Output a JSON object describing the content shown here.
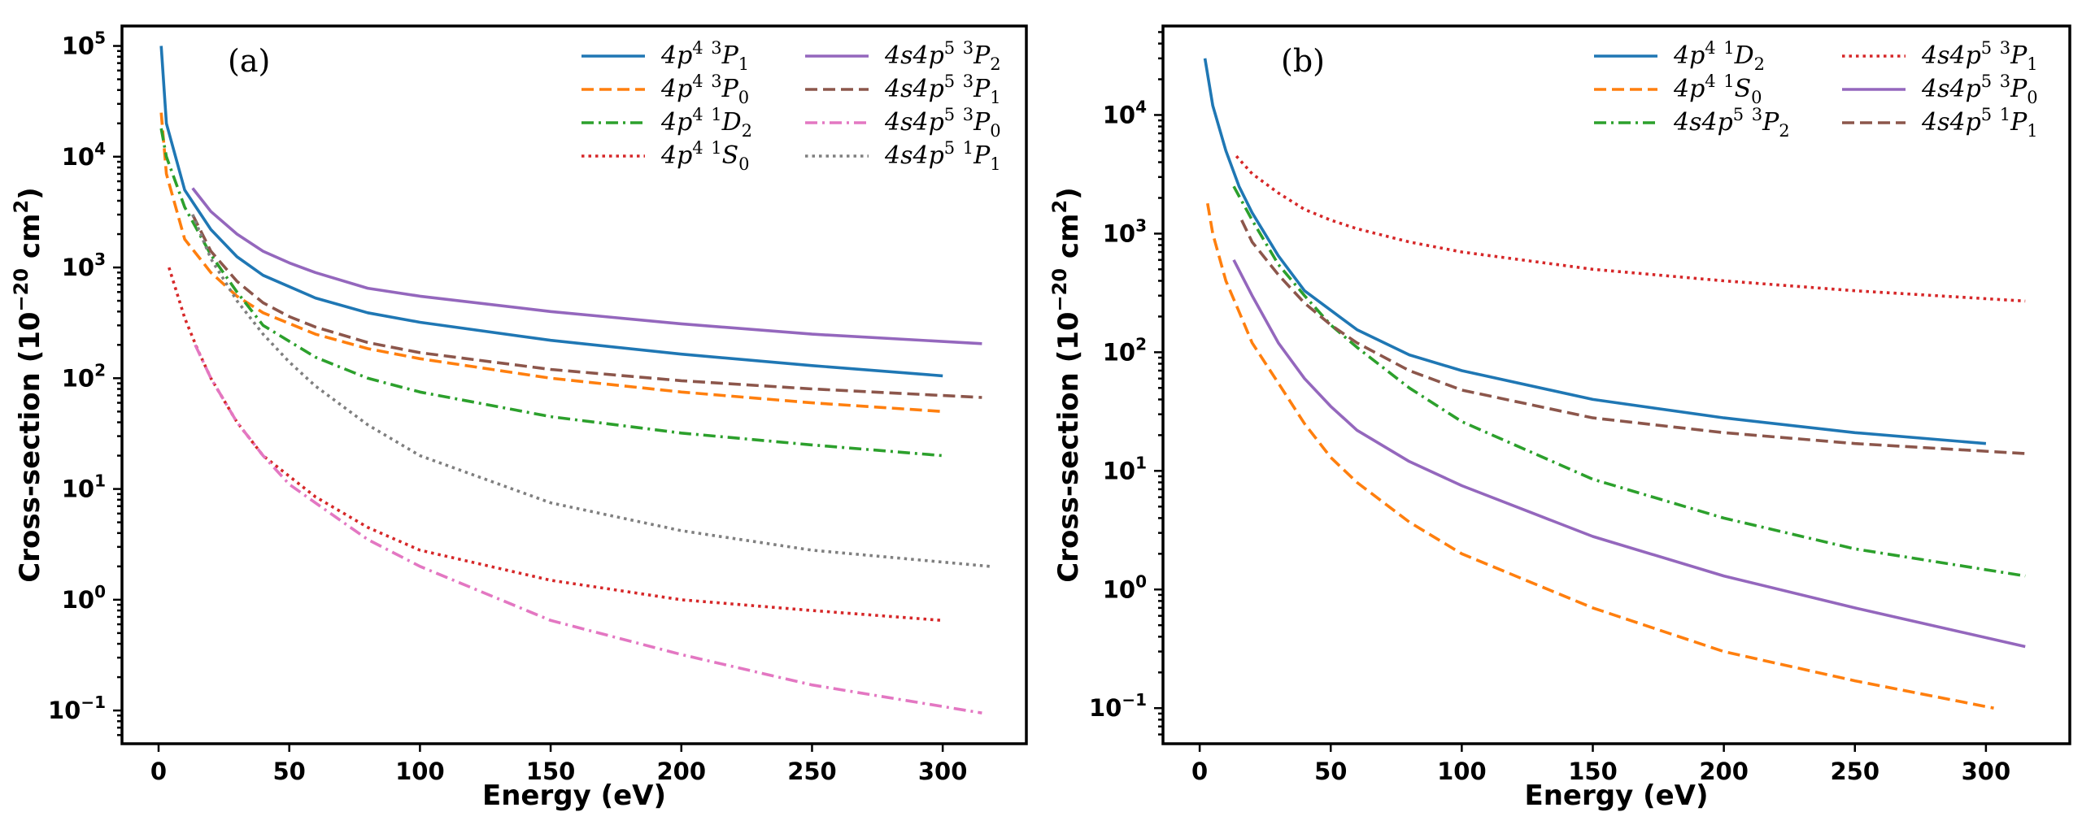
{
  "chart_data": [
    {
      "type": "line",
      "panel_label": "(a)",
      "xlabel": "Energy (eV)",
      "ylabel": "Cross-section (10",
      "ylabel_exp": "−20",
      "ylabel_unit": " cm",
      "ylabel_unit_exp": "2",
      "ylabel_close": ")",
      "xlim": [
        -14,
        332
      ],
      "ylim_log10": [
        -1.3,
        5.18
      ],
      "xticks": [
        0,
        50,
        100,
        150,
        200,
        250,
        300
      ],
      "yticks_log10": [
        -1,
        0,
        1,
        2,
        3,
        4,
        5
      ],
      "legend_position": "top-right",
      "series": [
        {
          "name": "4p4 3P1",
          "label": {
            "cfg": "4p",
            "cfg_exp": "4",
            "mult": "3",
            "term": "P",
            "j": "1"
          },
          "color": "#1f77b4",
          "style": "solid",
          "x": [
            1,
            3,
            10,
            20,
            30,
            40,
            60,
            80,
            100,
            150,
            200,
            250,
            300
          ],
          "y": [
            100000,
            20000,
            5000,
            2200,
            1250,
            850,
            530,
            390,
            320,
            220,
            165,
            130,
            105
          ]
        },
        {
          "name": "4p4 3P0",
          "label": {
            "cfg": "4p",
            "cfg_exp": "4",
            "mult": "3",
            "term": "P",
            "j": "0"
          },
          "color": "#ff7f0e",
          "style": "dashed",
          "x": [
            1,
            3,
            10,
            20,
            30,
            40,
            60,
            80,
            100,
            150,
            200,
            250,
            300
          ],
          "y": [
            25000,
            7000,
            1800,
            900,
            550,
            390,
            250,
            185,
            150,
            100,
            75,
            60,
            50
          ]
        },
        {
          "name": "4p4 1D2",
          "label": {
            "cfg": "4p",
            "cfg_exp": "4",
            "mult": "1",
            "term": "D",
            "j": "2"
          },
          "color": "#2ca02c",
          "style": "dashdot",
          "x": [
            1,
            3,
            10,
            20,
            30,
            40,
            60,
            80,
            100,
            150,
            200,
            250,
            300
          ],
          "y": [
            18000,
            10000,
            3500,
            1300,
            600,
            300,
            155,
            100,
            75,
            45,
            32,
            25,
            20
          ]
        },
        {
          "name": "4p4 1S0",
          "label": {
            "cfg": "4p",
            "cfg_exp": "4",
            "mult": "1",
            "term": "S",
            "j": "0"
          },
          "color": "#d62728",
          "style": "dotted",
          "x": [
            4,
            10,
            15,
            20,
            30,
            40,
            60,
            80,
            100,
            150,
            200,
            250,
            300
          ],
          "y": [
            1000,
            350,
            180,
            100,
            40,
            20,
            8.5,
            4.5,
            2.8,
            1.5,
            1.0,
            0.8,
            0.65
          ]
        },
        {
          "name": "4s4p5 3P2",
          "label": {
            "cfg": "4s4p",
            "cfg_exp": "5",
            "mult": "3",
            "term": "P",
            "j": "2"
          },
          "color": "#9467bd",
          "style": "solid",
          "x": [
            13,
            20,
            30,
            40,
            50,
            60,
            80,
            100,
            150,
            200,
            250,
            315
          ],
          "y": [
            5200,
            3200,
            2000,
            1400,
            1100,
            900,
            650,
            550,
            400,
            310,
            250,
            205
          ]
        },
        {
          "name": "4s4p5 3P1",
          "label": {
            "cfg": "4s4p",
            "cfg_exp": "5",
            "mult": "3",
            "term": "P",
            "j": "1"
          },
          "color": "#8c564b",
          "style": "dashed",
          "x": [
            13,
            20,
            30,
            40,
            50,
            60,
            80,
            100,
            150,
            200,
            250,
            315
          ],
          "y": [
            3000,
            1400,
            750,
            480,
            360,
            290,
            210,
            170,
            120,
            95,
            80,
            67
          ]
        },
        {
          "name": "4s4p5 3P0",
          "label": {
            "cfg": "4s4p",
            "cfg_exp": "5",
            "mult": "3",
            "term": "P",
            "j": "0"
          },
          "color": "#e377c2",
          "style": "dashdot",
          "x": [
            14,
            20,
            30,
            40,
            50,
            60,
            80,
            100,
            150,
            200,
            250,
            315
          ],
          "y": [
            200,
            100,
            40,
            20,
            11,
            7.5,
            3.5,
            2.0,
            0.65,
            0.32,
            0.17,
            0.095
          ]
        },
        {
          "name": "4s4p5 1P1",
          "label": {
            "cfg": "4s4p",
            "cfg_exp": "5",
            "mult": "1",
            "term": "P",
            "j": "1"
          },
          "color": "#7f7f7f",
          "style": "dotted",
          "x": [
            13,
            20,
            30,
            40,
            50,
            60,
            80,
            100,
            150,
            200,
            250,
            318
          ],
          "y": [
            3000,
            1200,
            500,
            250,
            140,
            85,
            38,
            20,
            7.5,
            4.2,
            2.8,
            2.0
          ]
        }
      ]
    },
    {
      "type": "line",
      "panel_label": "(b)",
      "xlabel": "Energy (eV)",
      "ylabel": "Cross-section (10",
      "ylabel_exp": "−20",
      "ylabel_unit": " cm",
      "ylabel_unit_exp": "2",
      "ylabel_close": ")",
      "xlim": [
        -14,
        332
      ],
      "ylim_log10": [
        -1.3,
        4.75
      ],
      "xticks": [
        0,
        50,
        100,
        150,
        200,
        250,
        300
      ],
      "yticks_log10": [
        -1,
        0,
        1,
        2,
        3,
        4
      ],
      "legend_position": "top-right",
      "series": [
        {
          "name": "4p4 1D2",
          "label": {
            "cfg": "4p",
            "cfg_exp": "4",
            "mult": "1",
            "term": "D",
            "j": "2"
          },
          "color": "#1f77b4",
          "style": "solid",
          "x": [
            2,
            5,
            10,
            15,
            20,
            30,
            40,
            60,
            80,
            100,
            150,
            200,
            250,
            300
          ],
          "y": [
            30000,
            12000,
            5000,
            2500,
            1500,
            650,
            330,
            155,
            95,
            70,
            40,
            28,
            21,
            17
          ]
        },
        {
          "name": "4p4 1S0",
          "label": {
            "cfg": "4p",
            "cfg_exp": "4",
            "mult": "1",
            "term": "S",
            "j": "0"
          },
          "color": "#ff7f0e",
          "style": "dashed",
          "x": [
            3,
            5,
            10,
            15,
            20,
            30,
            40,
            50,
            60,
            80,
            100,
            150,
            200,
            250,
            303
          ],
          "y": [
            1800,
            1000,
            400,
            220,
            120,
            55,
            25,
            13,
            8.0,
            3.7,
            2.0,
            0.7,
            0.3,
            0.17,
            0.1
          ]
        },
        {
          "name": "4s4p5 3P2",
          "label": {
            "cfg": "4s4p",
            "cfg_exp": "5",
            "mult": "3",
            "term": "P",
            "j": "2"
          },
          "color": "#2ca02c",
          "style": "dashdot",
          "x": [
            13,
            20,
            30,
            40,
            50,
            60,
            80,
            100,
            150,
            200,
            250,
            315
          ],
          "y": [
            2500,
            1300,
            550,
            300,
            170,
            110,
            50,
            26,
            8.5,
            4.0,
            2.2,
            1.3
          ]
        },
        {
          "name": "4s4p5 3P1",
          "label": {
            "cfg": "4s4p",
            "cfg_exp": "5",
            "mult": "3",
            "term": "P",
            "j": "1"
          },
          "color": "#d62728",
          "style": "dotted",
          "x": [
            14,
            20,
            30,
            40,
            50,
            60,
            80,
            100,
            150,
            200,
            250,
            315
          ],
          "y": [
            4500,
            3200,
            2200,
            1600,
            1300,
            1100,
            850,
            700,
            500,
            400,
            330,
            270
          ]
        },
        {
          "name": "4s4p5 3P0",
          "label": {
            "cfg": "4s4p",
            "cfg_exp": "5",
            "mult": "3",
            "term": "P",
            "j": "0"
          },
          "color": "#9467bd",
          "style": "solid",
          "x": [
            13,
            20,
            30,
            40,
            50,
            60,
            80,
            100,
            150,
            200,
            250,
            315
          ],
          "y": [
            600,
            300,
            120,
            60,
            35,
            22,
            12,
            7.5,
            2.8,
            1.3,
            0.7,
            0.33
          ]
        },
        {
          "name": "4s4p5 1P1",
          "label": {
            "cfg": "4s4p",
            "cfg_exp": "5",
            "mult": "1",
            "term": "P",
            "j": "1"
          },
          "color": "#8c564b",
          "style": "dashed",
          "x": [
            16,
            20,
            30,
            40,
            50,
            60,
            80,
            100,
            150,
            200,
            250,
            315
          ],
          "y": [
            1300,
            850,
            450,
            260,
            170,
            120,
            70,
            48,
            28,
            21,
            17,
            14
          ]
        }
      ]
    }
  ]
}
